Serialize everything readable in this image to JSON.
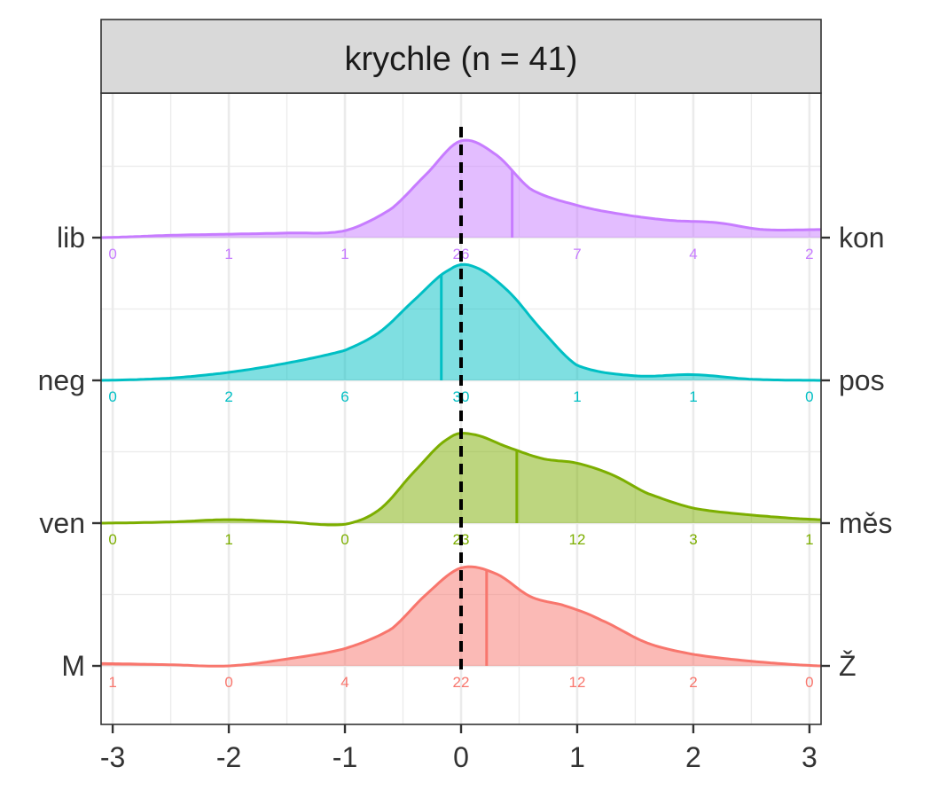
{
  "chart_data": {
    "type": "ridgeline",
    "title": "krychle (n = 41)",
    "x_ticks": [
      -3,
      -2,
      -1,
      0,
      1,
      2,
      3
    ],
    "xlim": [
      -3.1,
      3.1
    ],
    "reference_line_x": 0,
    "grid": true,
    "count_positions": [
      -3,
      -2,
      -1,
      0,
      1,
      2,
      3
    ],
    "ridges": [
      {
        "left_label": "M",
        "right_label": "Ž",
        "color": "#F8766D",
        "mean": 0.22,
        "counts": [
          1,
          0,
          4,
          22,
          12,
          2,
          0
        ],
        "density": [
          [
            -3.1,
            0.02
          ],
          [
            -2.5,
            0.01
          ],
          [
            -2,
            0.0
          ],
          [
            -1.5,
            0.06
          ],
          [
            -1,
            0.15
          ],
          [
            -0.6,
            0.32
          ],
          [
            -0.3,
            0.62
          ],
          [
            0,
            0.85
          ],
          [
            0.3,
            0.8
          ],
          [
            0.6,
            0.6
          ],
          [
            0.9,
            0.52
          ],
          [
            1.2,
            0.4
          ],
          [
            1.6,
            0.2
          ],
          [
            2,
            0.1
          ],
          [
            2.5,
            0.04
          ],
          [
            3.1,
            0.0
          ]
        ]
      },
      {
        "left_label": "ven",
        "right_label": "měs",
        "color": "#7CAE00",
        "mean": 0.48,
        "counts": [
          0,
          1,
          0,
          23,
          12,
          3,
          1
        ],
        "density": [
          [
            -3.1,
            0.0
          ],
          [
            -2.5,
            0.01
          ],
          [
            -2,
            0.03
          ],
          [
            -1.5,
            0.01
          ],
          [
            -1,
            -0.01
          ],
          [
            -0.7,
            0.12
          ],
          [
            -0.4,
            0.45
          ],
          [
            -0.1,
            0.74
          ],
          [
            0.1,
            0.77
          ],
          [
            0.4,
            0.66
          ],
          [
            0.7,
            0.56
          ],
          [
            1.0,
            0.52
          ],
          [
            1.3,
            0.42
          ],
          [
            1.6,
            0.26
          ],
          [
            2,
            0.13
          ],
          [
            2.5,
            0.07
          ],
          [
            3.1,
            0.03
          ]
        ]
      },
      {
        "left_label": "neg",
        "right_label": "pos",
        "color": "#00BFC4",
        "mean": -0.17,
        "counts": [
          0,
          2,
          6,
          30,
          1,
          1,
          0
        ],
        "density": [
          [
            -3.1,
            0.0
          ],
          [
            -2.5,
            0.02
          ],
          [
            -2,
            0.07
          ],
          [
            -1.5,
            0.15
          ],
          [
            -1,
            0.26
          ],
          [
            -0.7,
            0.42
          ],
          [
            -0.4,
            0.7
          ],
          [
            -0.1,
            0.96
          ],
          [
            0.1,
            0.99
          ],
          [
            0.4,
            0.78
          ],
          [
            0.7,
            0.43
          ],
          [
            1,
            0.13
          ],
          [
            1.5,
            0.04
          ],
          [
            2,
            0.05
          ],
          [
            2.5,
            0.01
          ],
          [
            3.1,
            0.0
          ]
        ]
      },
      {
        "left_label": "lib",
        "right_label": "kon",
        "color": "#C77CFF",
        "mean": 0.44,
        "counts": [
          0,
          1,
          1,
          26,
          7,
          4,
          2
        ],
        "density": [
          [
            -3.1,
            0.0
          ],
          [
            -2.5,
            0.02
          ],
          [
            -2,
            0.03
          ],
          [
            -1.5,
            0.04
          ],
          [
            -1,
            0.06
          ],
          [
            -0.6,
            0.25
          ],
          [
            -0.3,
            0.55
          ],
          [
            0,
            0.84
          ],
          [
            0.3,
            0.72
          ],
          [
            0.6,
            0.42
          ],
          [
            1,
            0.28
          ],
          [
            1.4,
            0.2
          ],
          [
            1.8,
            0.15
          ],
          [
            2.2,
            0.13
          ],
          [
            2.6,
            0.07
          ],
          [
            3.1,
            0.07
          ]
        ]
      }
    ]
  }
}
